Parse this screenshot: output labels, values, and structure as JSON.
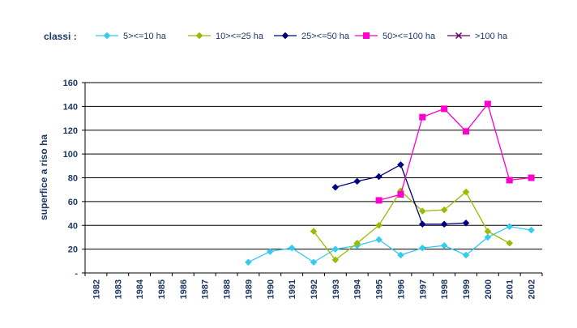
{
  "legend_title": "classi :",
  "chart_data": {
    "type": "line",
    "title": "",
    "xlabel": "",
    "ylabel": "superfice a riso ha",
    "ylim": [
      0,
      160
    ],
    "yticks": [
      "-",
      "20",
      "40",
      "60",
      "80",
      "100",
      "120",
      "140",
      "160"
    ],
    "grid": "horizontal",
    "legend_position": "top",
    "categories": [
      "1982",
      "1983",
      "1984",
      "1985",
      "1986",
      "1987",
      "1988",
      "1989",
      "1990",
      "1991",
      "1992",
      "1993",
      "1994",
      "1995",
      "1996",
      "1997",
      "1998",
      "1999",
      "2000",
      "2001",
      "2002"
    ],
    "series": [
      {
        "name": "5><=10 ha",
        "color": "#33ccee",
        "marker": "diamond",
        "values": [
          null,
          null,
          null,
          null,
          null,
          null,
          null,
          9,
          18,
          21,
          9,
          20,
          23,
          28,
          15,
          21,
          23,
          15,
          30,
          39,
          36
        ]
      },
      {
        "name": "10><=25 ha",
        "color": "#99bb00",
        "marker": "diamond",
        "values": [
          null,
          null,
          null,
          null,
          null,
          null,
          null,
          null,
          null,
          null,
          35,
          11,
          25,
          40,
          69,
          52,
          53,
          68,
          35,
          25,
          null
        ]
      },
      {
        "name": "25><=50 ha",
        "color": "#000080",
        "marker": "diamond",
        "values": [
          null,
          null,
          null,
          null,
          null,
          null,
          null,
          null,
          null,
          null,
          null,
          72,
          77,
          81,
          91,
          41,
          41,
          42,
          null,
          null,
          null
        ]
      },
      {
        "name": "50><=100 ha",
        "color": "#ff00cc",
        "marker": "square",
        "values": [
          null,
          null,
          null,
          null,
          null,
          null,
          null,
          null,
          null,
          null,
          null,
          null,
          null,
          61,
          66,
          131,
          138,
          119,
          142,
          78,
          80
        ]
      },
      {
        "name": ">100 ha",
        "color": "#660066",
        "marker": "x",
        "values": [
          null,
          null,
          null,
          null,
          null,
          null,
          null,
          null,
          null,
          null,
          null,
          null,
          null,
          null,
          null,
          null,
          null,
          null,
          null,
          null,
          null
        ]
      }
    ]
  }
}
